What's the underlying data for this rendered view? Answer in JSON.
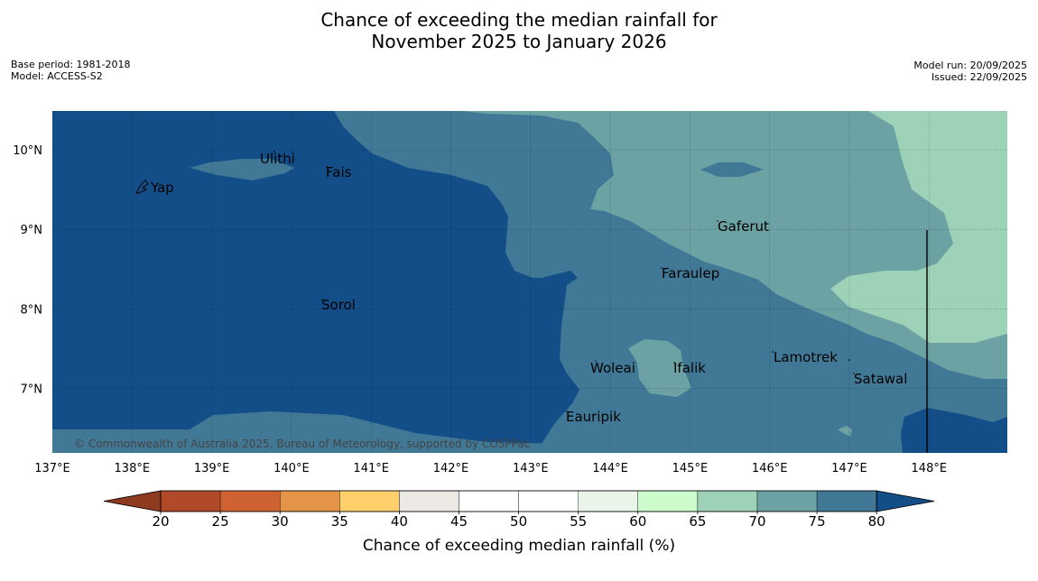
{
  "title": {
    "line1": "Chance of exceeding the median rainfall for",
    "line2": "November 2025 to January 2026"
  },
  "meta_left": {
    "base_period": "Base period: 1981-2018",
    "model": "Model: ACCESS-S2"
  },
  "meta_right": {
    "model_run": "Model run: 20/09/2025",
    "issued": "Issued: 22/09/2025"
  },
  "copyright": "© Commonwealth of Australia 2025, Bureau of Meteorology, supported by COSPPac",
  "axes": {
    "lon_labels": [
      "137°E",
      "138°E",
      "139°E",
      "140°E",
      "141°E",
      "142°E",
      "143°E",
      "144°E",
      "145°E",
      "146°E",
      "147°E",
      "148°E"
    ],
    "lat_labels": [
      "10°N",
      "9°N",
      "8°N",
      "7°N"
    ]
  },
  "places": {
    "yap": "Yap",
    "ulithi": "Ulithi",
    "fais": "Fais",
    "gaferut": "Gaferut",
    "faraulep": "Faraulep",
    "sorol": "Sorol",
    "lamotrek": "Lamotrek",
    "woleai": "Woleai",
    "ifalik": "Ifalik",
    "satawal": "Satawal",
    "eauripik": "Eauripik"
  },
  "colorbar": {
    "title": "Chance of exceeding median rainfall (%)",
    "ticks": [
      "20",
      "25",
      "30",
      "35",
      "40",
      "45",
      "50",
      "55",
      "60",
      "65",
      "70",
      "75",
      "80"
    ],
    "colors": {
      "below20": "#8e3a1f",
      "c20_25": "#b04a28",
      "c25_30": "#cf6232",
      "c30_35": "#e39447",
      "c35_40": "#fecf6a",
      "c40_45": "#ece8e3",
      "c45_50": "#ffffff",
      "c50_55": "#ffffff",
      "c55_60": "#eaf5ea",
      "c60_65": "#ccfccc",
      "c65_70": "#9dd1b8",
      "c70_75": "#6ca2a3",
      "c75_80": "#417896",
      "above80": "#134e88"
    }
  }
}
